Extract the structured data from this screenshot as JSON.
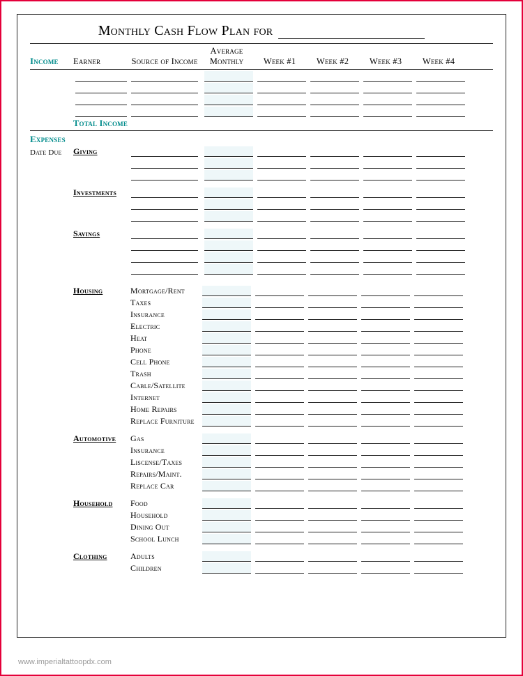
{
  "title": "Monthly Cash Flow Plan for",
  "headers": {
    "income": "Income",
    "earner": "Earner",
    "source": "Source of Income",
    "average": "Average Monthly",
    "w1": "Week #1",
    "w2": "Week #2",
    "w3": "Week #3",
    "w4": "Week #4"
  },
  "total_income": "Total Income",
  "expenses_label": "Expenses",
  "date_due": "Date Due",
  "income_rows": 4,
  "sections": [
    {
      "name": "Giving",
      "items": [
        "",
        "",
        ""
      ]
    },
    {
      "name": "Investments",
      "items": [
        "",
        "",
        ""
      ]
    },
    {
      "name": "Savings",
      "items": [
        "",
        "",
        "",
        ""
      ]
    },
    {
      "name": "Housing",
      "items": [
        "Mortgage/Rent",
        "Taxes",
        "Insurance",
        "Electric",
        "Heat",
        "Phone",
        "Cell Phone",
        "Trash",
        "Cable/Satellite",
        "Internet",
        "Home Repairs",
        "Replace Furniture"
      ]
    },
    {
      "name": "Automotive",
      "items": [
        "Gas",
        "Insurance",
        "Liscense/Taxes",
        "Repairs/Maint.",
        "Replace Car"
      ]
    },
    {
      "name": "Household",
      "items": [
        "Food",
        "Household",
        "Dining Out",
        "School Lunch"
      ]
    },
    {
      "name": "Clothing",
      "items": [
        "Adults",
        "Children"
      ]
    }
  ],
  "colors": {
    "border": "#e4003a",
    "accent": "#008b8b",
    "avg_bg": "#eef7f9",
    "line": "#222222"
  },
  "footer": "www.imperialtattoopdx.com"
}
